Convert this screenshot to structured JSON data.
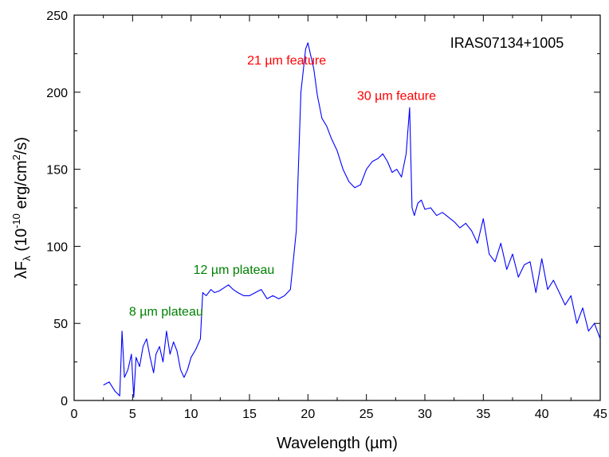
{
  "chart_data": {
    "type": "line",
    "xlabel": "Wavelength (µm)",
    "ylabel_parts": {
      "pre": "λF",
      "sub": "λ",
      "mid1": " (10",
      "exp1": "-10",
      "mid2": " erg/cm",
      "exp2": "2",
      "post": "/s)"
    },
    "xlim": [
      0,
      45
    ],
    "ylim": [
      0,
      250
    ],
    "xticks": [
      0,
      5,
      10,
      15,
      20,
      25,
      30,
      35,
      40,
      45
    ],
    "yticks": [
      0,
      50,
      100,
      150,
      200,
      250
    ],
    "grid": false,
    "line_color": "#0000ff",
    "series": [
      {
        "x": [
          2.5,
          3.0,
          3.5,
          3.9,
          4.1,
          4.3,
          4.6,
          4.9,
          5.1,
          5.3,
          5.6,
          5.9,
          6.2,
          6.5,
          6.8,
          7.0,
          7.3,
          7.6,
          7.9,
          8.2,
          8.5,
          8.8,
          9.1,
          9.4,
          9.7,
          10.0,
          10.4,
          10.8,
          11.0,
          11.3,
          11.7,
          12.0,
          12.4,
          12.8,
          13.2,
          13.6,
          14.0,
          14.5,
          15.0,
          15.5,
          16.0,
          16.5,
          17.0,
          17.5,
          18.0,
          18.5,
          19.0,
          19.4,
          19.8,
          20.0,
          20.2,
          20.5,
          20.8,
          21.2,
          21.6,
          22.0,
          22.5,
          23.0,
          23.5,
          24.0,
          24.5,
          25.0,
          25.5,
          26.0,
          26.4,
          26.8,
          27.2,
          27.6,
          28.0,
          28.4,
          28.7,
          28.9,
          29.1,
          29.4,
          29.7,
          30.0,
          30.5,
          31.0,
          31.5,
          32.0,
          32.5,
          33.0,
          33.5,
          34.0,
          34.5,
          35.0,
          35.5,
          36.0,
          36.5,
          37.0,
          37.5,
          38.0,
          38.5,
          39.0,
          39.5,
          40.0,
          40.5,
          41.0,
          41.5,
          42.0,
          42.5,
          43.0,
          43.5,
          44.0,
          44.5,
          45.0
        ],
        "y": [
          10,
          12,
          6,
          3,
          45,
          15,
          20,
          30,
          2,
          28,
          22,
          35,
          40,
          28,
          18,
          30,
          35,
          25,
          45,
          30,
          38,
          32,
          20,
          15,
          20,
          28,
          33,
          40,
          70,
          68,
          72,
          70,
          71,
          73,
          75,
          72,
          70,
          68,
          68,
          70,
          72,
          66,
          68,
          66,
          68,
          72,
          110,
          200,
          228,
          232,
          225,
          215,
          198,
          183,
          178,
          170,
          162,
          150,
          142,
          138,
          140,
          150,
          155,
          157,
          160,
          155,
          148,
          150,
          145,
          160,
          190,
          125,
          120,
          128,
          130,
          124,
          125,
          120,
          122,
          119,
          116,
          112,
          115,
          110,
          102,
          118,
          95,
          90,
          102,
          85,
          95,
          80,
          88,
          90,
          70,
          92,
          72,
          78,
          70,
          62,
          68,
          50,
          60,
          45,
          50,
          40
        ]
      }
    ],
    "annotations": [
      {
        "id": "21um",
        "text_pre": "21 ",
        "mu": "µ",
        "text_post": "m feature",
        "color": "#ff0000",
        "x": 14.8,
        "y": 218
      },
      {
        "id": "30um",
        "text_pre": "30 ",
        "mu": "µ",
        "text_post": "m feature",
        "color": "#ff0000",
        "x": 24.2,
        "y": 195
      },
      {
        "id": "12um",
        "text_pre": "12 ",
        "mu": "µ",
        "text_post": "m plateau",
        "color": "#008000",
        "x": 10.2,
        "y": 82
      },
      {
        "id": "8um",
        "text_pre": "8 ",
        "mu": "µ",
        "text_post": "m plateau",
        "color": "#008000",
        "x": 4.7,
        "y": 55
      }
    ],
    "object_label": "IRAS07134+1005"
  }
}
